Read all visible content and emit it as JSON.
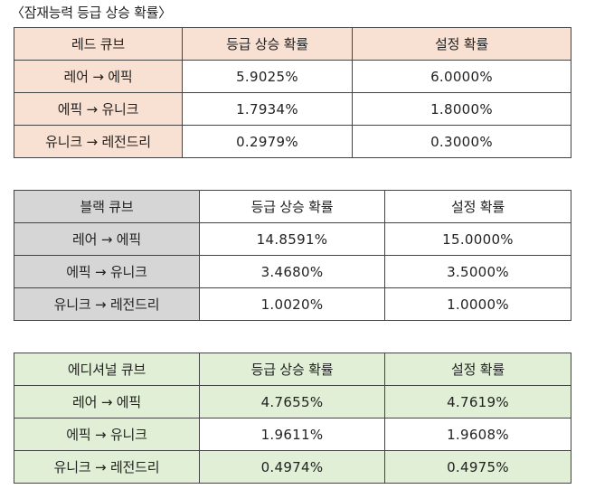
{
  "caption": "〈잠재능력 등급 상승 확률〉",
  "tables": [
    {
      "header": [
        "레드 큐브",
        "등급 상승 확률",
        "설정 확률"
      ],
      "rows": [
        [
          "레어 → 에픽",
          "5.9025%",
          "6.0000%"
        ],
        [
          "에픽 → 유니크",
          "1.7934%",
          "1.8000%"
        ],
        [
          "유니크 → 레전드리",
          "0.2979%",
          "0.3000%"
        ]
      ]
    },
    {
      "header": [
        "블랙 큐브",
        "등급 상승 확률",
        "설정 확률"
      ],
      "rows": [
        [
          "레어 → 에픽",
          "14.8591%",
          "15.0000%"
        ],
        [
          "에픽 → 유니크",
          "3.4680%",
          "3.5000%"
        ],
        [
          "유니크 → 레전드리",
          "1.0020%",
          "1.0000%"
        ]
      ]
    },
    {
      "header": [
        "에디셔널 큐브",
        "등급 상승 확률",
        "설정 확률"
      ],
      "rows": [
        [
          "레어 → 에픽",
          "4.7655%",
          "4.7619%"
        ],
        [
          "에픽 → 유니크",
          "1.9611%",
          "1.9608%"
        ],
        [
          "유니크 → 레전드리",
          "0.4974%",
          "0.4975%"
        ]
      ]
    }
  ],
  "colors": {
    "red_header": "#f8e0d2",
    "black_header": "#d6d6d6",
    "additional_header": "#e0efd6"
  }
}
